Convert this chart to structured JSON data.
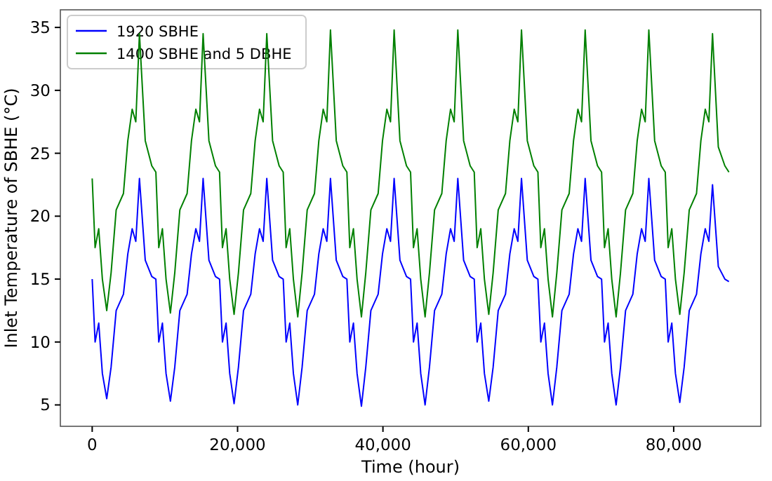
{
  "chart_data": {
    "type": "line",
    "xlabel": "Time (hour)",
    "ylabel": "Inlet Temperature of SBHE (°C)",
    "xlim": [
      -4380,
      91980
    ],
    "ylim": [
      3.3,
      36.4
    ],
    "xticks": [
      0,
      {
        "value": 20000,
        "label": "20,000"
      },
      {
        "value": 40000,
        "label": "40,000"
      },
      {
        "value": 60000,
        "label": "60,000"
      },
      {
        "value": 80000,
        "label": "80,000"
      }
    ],
    "yticks": [
      5,
      10,
      15,
      20,
      25,
      30,
      35
    ],
    "grid": false,
    "legend": "top left",
    "line_style": "solid",
    "marker": "none",
    "x": [
      0,
      400,
      900,
      1400,
      2000,
      2600,
      3300,
      4300,
      4900,
      5500,
      6000,
      6500,
      7300,
      8200,
      8760,
      9160,
      9660,
      10160,
      10760,
      11360,
      12060,
      13060,
      13660,
      14260,
      14760,
      15260,
      16060,
      16960,
      17520,
      17920,
      18420,
      18920,
      19520,
      20120,
      20820,
      21820,
      22420,
      23020,
      23520,
      24020,
      24820,
      25720,
      26280,
      26680,
      27180,
      27680,
      28280,
      28880,
      29580,
      30580,
      31180,
      31780,
      32280,
      32780,
      33580,
      34480,
      35040,
      35440,
      35940,
      36440,
      37040,
      37640,
      38340,
      39340,
      39940,
      40540,
      41040,
      41540,
      42340,
      43240,
      43800,
      44200,
      44700,
      45200,
      45800,
      46400,
      47100,
      48100,
      48700,
      49300,
      49800,
      50300,
      51100,
      52000,
      52560,
      52960,
      53460,
      53960,
      54560,
      55160,
      55860,
      56860,
      57460,
      58060,
      58560,
      59060,
      59860,
      60760,
      61320,
      61720,
      62220,
      62720,
      63320,
      63920,
      64620,
      65620,
      66220,
      66820,
      67320,
      67820,
      68620,
      69520,
      70080,
      70480,
      70980,
      71480,
      72080,
      72680,
      73380,
      74380,
      74980,
      75580,
      76080,
      76580,
      77380,
      78280,
      78840,
      79240,
      79740,
      80240,
      80840,
      81440,
      82140,
      83140,
      83740,
      84340,
      84840,
      85340,
      86140,
      87040,
      87600
    ],
    "series": [
      {
        "name": "1920 SBHE",
        "color": "#0000ff",
        "values": [
          15.0,
          10.0,
          11.5,
          7.5,
          5.5,
          8.0,
          12.5,
          13.8,
          17.0,
          19.0,
          18.0,
          23.0,
          16.5,
          15.2,
          15.0,
          10.0,
          11.5,
          7.5,
          5.3,
          8.0,
          12.5,
          13.8,
          17.0,
          19.0,
          18.0,
          23.0,
          16.5,
          15.2,
          15.0,
          10.0,
          11.5,
          7.5,
          5.1,
          8.0,
          12.5,
          13.8,
          17.0,
          19.0,
          18.0,
          23.0,
          16.5,
          15.2,
          15.0,
          10.0,
          11.5,
          7.5,
          5.0,
          8.0,
          12.5,
          13.8,
          17.0,
          19.0,
          18.0,
          23.0,
          16.5,
          15.2,
          15.0,
          10.0,
          11.5,
          7.5,
          4.9,
          8.0,
          12.5,
          13.8,
          17.0,
          19.0,
          18.0,
          23.0,
          16.5,
          15.2,
          15.0,
          10.0,
          11.5,
          7.5,
          5.0,
          8.0,
          12.5,
          13.8,
          17.0,
          19.0,
          18.0,
          23.0,
          16.5,
          15.2,
          15.0,
          10.0,
          11.5,
          7.5,
          5.3,
          8.0,
          12.5,
          13.8,
          17.0,
          19.0,
          18.0,
          23.0,
          16.5,
          15.2,
          15.0,
          10.0,
          11.5,
          7.5,
          5.0,
          8.0,
          12.5,
          13.8,
          17.0,
          19.0,
          18.0,
          23.0,
          16.5,
          15.2,
          15.0,
          10.0,
          11.5,
          7.5,
          5.0,
          8.0,
          12.5,
          13.8,
          17.0,
          19.0,
          18.0,
          23.0,
          16.5,
          15.2,
          15.0,
          10.0,
          11.5,
          7.5,
          5.2,
          8.0,
          12.5,
          13.8,
          17.0,
          19.0,
          18.0,
          22.5,
          16.0,
          15.0,
          14.8
        ]
      },
      {
        "name": "1400 SBHE and 5 DBHE",
        "color": "#008000",
        "values": [
          23.0,
          17.5,
          19.0,
          15.0,
          12.5,
          15.5,
          20.5,
          21.8,
          26.0,
          28.5,
          27.5,
          34.5,
          26.0,
          24.0,
          23.5,
          17.5,
          19.0,
          15.0,
          12.3,
          15.5,
          20.5,
          21.8,
          26.0,
          28.5,
          27.5,
          34.5,
          26.0,
          24.0,
          23.5,
          17.5,
          19.0,
          15.0,
          12.2,
          15.5,
          20.5,
          21.8,
          26.0,
          28.5,
          27.5,
          34.5,
          26.0,
          24.0,
          23.5,
          17.5,
          19.0,
          15.0,
          12.0,
          15.5,
          20.5,
          21.8,
          26.0,
          28.5,
          27.5,
          34.8,
          26.0,
          24.0,
          23.5,
          17.5,
          19.0,
          15.0,
          12.0,
          15.5,
          20.5,
          21.8,
          26.0,
          28.5,
          27.5,
          34.8,
          26.0,
          24.0,
          23.5,
          17.5,
          19.0,
          15.0,
          12.0,
          15.5,
          20.5,
          21.8,
          26.0,
          28.5,
          27.5,
          34.8,
          26.0,
          24.0,
          23.5,
          17.5,
          19.0,
          15.0,
          12.2,
          15.5,
          20.5,
          21.8,
          26.0,
          28.5,
          27.5,
          34.8,
          26.0,
          24.0,
          23.5,
          17.5,
          19.0,
          15.0,
          12.0,
          15.5,
          20.5,
          21.8,
          26.0,
          28.5,
          27.5,
          34.8,
          26.0,
          24.0,
          23.5,
          17.5,
          19.0,
          15.0,
          12.0,
          15.5,
          20.5,
          21.8,
          26.0,
          28.5,
          27.5,
          34.8,
          26.0,
          24.0,
          23.5,
          17.5,
          19.0,
          15.0,
          12.2,
          15.5,
          20.5,
          21.8,
          26.0,
          28.5,
          27.5,
          34.5,
          25.5,
          24.0,
          23.5
        ]
      }
    ]
  }
}
